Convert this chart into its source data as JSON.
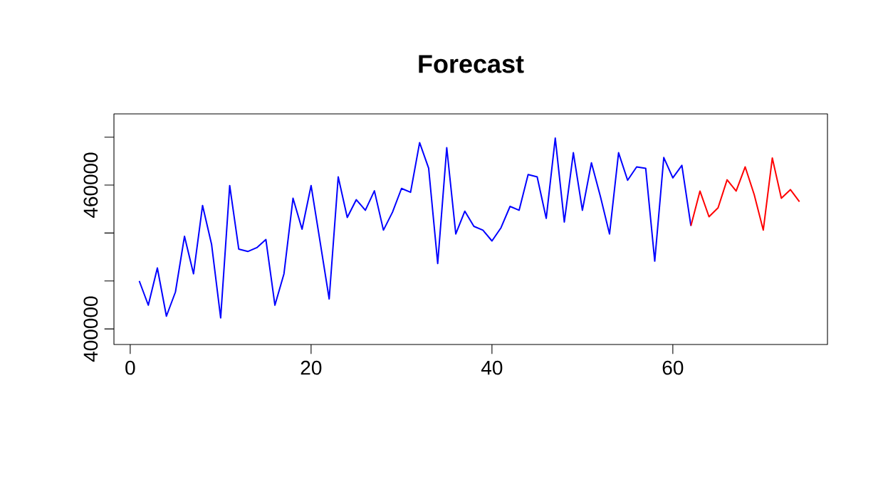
{
  "chart_data": {
    "type": "line",
    "title": "Forecast",
    "series": [
      {
        "color": "#0000ff",
        "x": [
          1,
          2,
          3,
          4,
          5,
          6,
          7,
          8,
          9,
          10,
          11,
          12,
          13,
          14,
          15,
          16,
          17,
          18,
          19,
          20,
          21,
          22,
          23,
          24,
          25,
          26,
          27,
          28,
          29,
          30,
          31,
          32,
          33,
          34,
          35,
          36,
          37,
          38,
          39,
          40,
          41,
          42,
          43,
          44,
          45,
          46,
          47,
          48,
          49,
          50,
          51,
          52,
          53,
          54,
          55,
          56,
          57,
          58,
          59,
          60,
          61,
          62
        ],
        "values": [
          420000,
          409900,
          425400,
          405300,
          415400,
          438600,
          423000,
          451500,
          435200,
          404600,
          459800,
          433300,
          432300,
          433900,
          437300,
          409900,
          423000,
          454500,
          441600,
          459800,
          436200,
          412500,
          463400,
          446500,
          453900,
          449500,
          457600,
          441200,
          448700,
          458600,
          457000,
          477700,
          467000,
          427300,
          475600,
          439600,
          449100,
          442800,
          441200,
          436700,
          442200,
          451100,
          449500,
          464400,
          463400,
          446100,
          479600,
          444600,
          473500,
          449500,
          469300,
          455100,
          439600,
          473500,
          462000,
          467600,
          467000,
          428300,
          471500,
          463000,
          468200,
          443000
        ]
      },
      {
        "color": "#ff0000",
        "x": [
          62,
          63,
          64,
          65,
          66,
          67,
          68,
          69,
          70,
          71,
          72,
          73,
          74
        ],
        "values": [
          443000,
          457500,
          446800,
          450500,
          462200,
          457500,
          467600,
          456000,
          441200,
          471300,
          454500,
          458100,
          453100
        ]
      }
    ],
    "xlim": [
      -1.8,
      77.1
    ],
    "ylim": [
      393500,
      489700
    ],
    "xticks": [
      0,
      20,
      40,
      60
    ],
    "yticks": [
      400000,
      {
        "value": 420000,
        "label": null
      },
      {
        "value": 440000,
        "label": null
      },
      460000,
      {
        "value": 480000,
        "label": null
      }
    ],
    "marker": "none",
    "line_style": "solid",
    "grid": false
  }
}
